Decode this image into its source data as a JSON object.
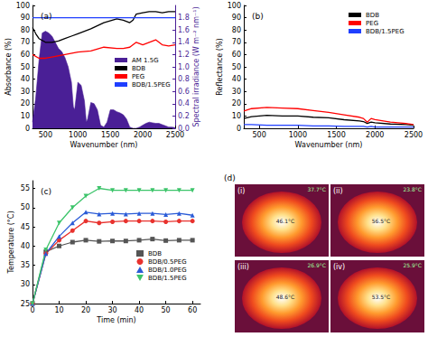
{
  "chart_data": [
    {
      "type": "line",
      "title": "(a)",
      "x_label": "Wavenumber (nm)",
      "y_label": "Absorbance (%)",
      "y2_label": "Spectral irradiance (W m⁻² nm⁻¹)",
      "xlim": [
        300,
        2500
      ],
      "xticks": [
        500,
        1000,
        1500,
        2000,
        2500
      ],
      "ylim": [
        0,
        100
      ],
      "yticks": [
        0,
        10,
        20,
        30,
        40,
        50,
        60,
        70,
        80,
        90,
        100
      ],
      "y2lim": [
        0,
        2.0
      ],
      "y2ticks": [
        {
          "value": 0,
          "label": "0.0"
        },
        {
          "value": 0.2,
          "label": "0.2"
        },
        {
          "value": 0.4,
          "label": "0.4"
        },
        {
          "value": 0.6,
          "label": "0.6"
        },
        {
          "value": 0.8,
          "label": "0.8"
        },
        {
          "value": 1.0,
          "label": "1.0"
        },
        {
          "value": 1.2,
          "label": "1.2"
        },
        {
          "value": 1.4,
          "label": "1.4"
        },
        {
          "value": 1.6,
          "label": "1.6"
        },
        {
          "value": 1.8,
          "label": "1.8"
        }
      ],
      "grid": false,
      "legend": "right",
      "series": [
        {
          "name": "AM 1.5G",
          "type": "area",
          "axis": "y2",
          "color": "#4a1f96",
          "marker": "none",
          "x": [
            300,
            350,
            400,
            450,
            500,
            550,
            600,
            650,
            700,
            750,
            800,
            850,
            900,
            930,
            950,
            1000,
            1050,
            1100,
            1130,
            1150,
            1200,
            1250,
            1300,
            1350,
            1400,
            1450,
            1500,
            1550,
            1600,
            1650,
            1700,
            1750,
            1800,
            1850,
            1900,
            1950,
            2000,
            2050,
            2100,
            2150,
            2200,
            2250,
            2300,
            2350,
            2400,
            2450,
            2500
          ],
          "values": [
            0.1,
            0.5,
            1.1,
            1.55,
            1.58,
            1.55,
            1.5,
            1.4,
            1.3,
            1.25,
            1.15,
            1.0,
            0.75,
            0.35,
            0.3,
            0.75,
            0.7,
            0.45,
            0.1,
            0.15,
            0.42,
            0.4,
            0.3,
            0.05,
            0.02,
            0.1,
            0.3,
            0.3,
            0.27,
            0.25,
            0.22,
            0.15,
            0.02,
            0.0,
            0.0,
            0.02,
            0.05,
            0.08,
            0.1,
            0.09,
            0.08,
            0.08,
            0.06,
            0.04,
            0.02,
            0.02,
            0.01
          ]
        },
        {
          "name": "BDB",
          "color": "#000000",
          "marker": "none",
          "x": [
            300,
            350,
            400,
            500,
            600,
            700,
            800,
            900,
            1000,
            1200,
            1400,
            1600,
            1700,
            1800,
            1850,
            1900,
            2000,
            2100,
            2200,
            2300,
            2400,
            2500
          ],
          "values": [
            82,
            77,
            73,
            70,
            70,
            71,
            73,
            75,
            77,
            81,
            86,
            89,
            88,
            86,
            88,
            93,
            94,
            95,
            95,
            94,
            95,
            95
          ]
        },
        {
          "name": "PEG",
          "color": "#ff0000",
          "marker": "none",
          "x": [
            300,
            400,
            500,
            600,
            800,
            1000,
            1200,
            1400,
            1600,
            1700,
            1800,
            1900,
            2000,
            2100,
            2200,
            2300,
            2400,
            2500
          ],
          "values": [
            60,
            57,
            57,
            58,
            60,
            62,
            63,
            66,
            65,
            65,
            66,
            70,
            68,
            70,
            72,
            68,
            67,
            68
          ]
        },
        {
          "name": "BDB/1.5PEG",
          "color": "#1f3fff",
          "marker": "none",
          "x": [
            300,
            1000,
            2000,
            2500
          ],
          "values": [
            90,
            90,
            90,
            90
          ]
        }
      ]
    },
    {
      "type": "line",
      "title": "(b)",
      "x_label": "Wavenumber (nm)",
      "y_label": "Reflectance (%)",
      "xlim": [
        300,
        2500
      ],
      "xticks": [
        500,
        1000,
        1500,
        2000,
        2500
      ],
      "ylim": [
        0,
        100
      ],
      "yticks": [
        0,
        10,
        20,
        30,
        40,
        50,
        60,
        70,
        80,
        90,
        100
      ],
      "grid": false,
      "legend": "upper right",
      "x": [
        300,
        400,
        600,
        800,
        1000,
        1200,
        1400,
        1600,
        1800,
        1850,
        1900,
        1950,
        2000,
        2200,
        2400,
        2500
      ],
      "series": [
        {
          "name": "BDB",
          "color": "#000000",
          "marker": "none",
          "values": [
            8,
            9.5,
            10.5,
            10,
            10,
            9,
            8.5,
            7,
            6,
            5.5,
            4,
            5,
            4.5,
            3.5,
            3,
            2.5
          ]
        },
        {
          "name": "PEG",
          "color": "#ff0000",
          "marker": "none",
          "values": [
            14,
            16,
            17,
            16.5,
            16,
            14.5,
            13,
            11,
            9,
            8,
            5,
            8,
            7,
            5,
            4,
            3
          ]
        },
        {
          "name": "BDB/1.5PEG",
          "color": "#1f3fff",
          "marker": "none",
          "values": [
            3,
            3,
            2.5,
            2.5,
            2.5,
            2,
            2,
            1.5,
            1.5,
            1.5,
            1,
            1.5,
            1,
            1,
            1,
            1
          ]
        }
      ]
    },
    {
      "type": "line",
      "title": "(c)",
      "x_label": "Time (min)",
      "y_label": "Temperature (°C)",
      "xlim": [
        0,
        63
      ],
      "xticks": [
        0,
        10,
        20,
        30,
        40,
        50,
        60
      ],
      "ylim": [
        25,
        57
      ],
      "yticks": [
        25,
        30,
        35,
        40,
        45,
        50,
        55
      ],
      "grid": false,
      "legend": "lower right",
      "x": [
        0,
        5,
        10,
        15,
        20,
        25,
        30,
        35,
        40,
        45,
        50,
        55,
        60
      ],
      "series": [
        {
          "name": "BDB",
          "color": "#555555",
          "marker": "square",
          "values": [
            25,
            38.5,
            40,
            41,
            41.5,
            41.2,
            41.3,
            41.3,
            41.5,
            41.8,
            41.4,
            41.5,
            41.5
          ]
        },
        {
          "name": "BDB/0.5PEG",
          "color": "#e8322e",
          "marker": "circle",
          "values": [
            25,
            38,
            41.5,
            44,
            46.5,
            46,
            46.3,
            46.5,
            46.5,
            46.5,
            46.3,
            46.5,
            46.5
          ]
        },
        {
          "name": "BDB/1.0PEG",
          "color": "#2a5bd7",
          "marker": "triangle",
          "values": [
            25,
            38,
            42.5,
            46,
            48.8,
            48.3,
            48.5,
            48.3,
            48.5,
            48.5,
            48.2,
            48.5,
            48
          ]
        },
        {
          "name": "BDB/1.5PEG",
          "color": "#3cc46a",
          "marker": "inverted_triangle",
          "values": [
            25,
            39,
            46,
            50,
            53,
            55,
            54.5,
            54.5,
            54.5,
            54.5,
            54.5,
            54.5,
            54.5
          ]
        }
      ]
    }
  ],
  "images": {
    "label": "(d)",
    "panels": [
      {
        "label": "(i)",
        "temps": [
          "37.7°C",
          "46.1°C"
        ]
      },
      {
        "label": "(ii)",
        "temps": [
          "23.8°C",
          "56.5°C"
        ]
      },
      {
        "label": "(iii)",
        "temps": [
          "26.9°C",
          "48.6°C"
        ]
      },
      {
        "label": "(iv)",
        "temps": [
          "25.9°C",
          "53.5°C"
        ]
      }
    ]
  }
}
